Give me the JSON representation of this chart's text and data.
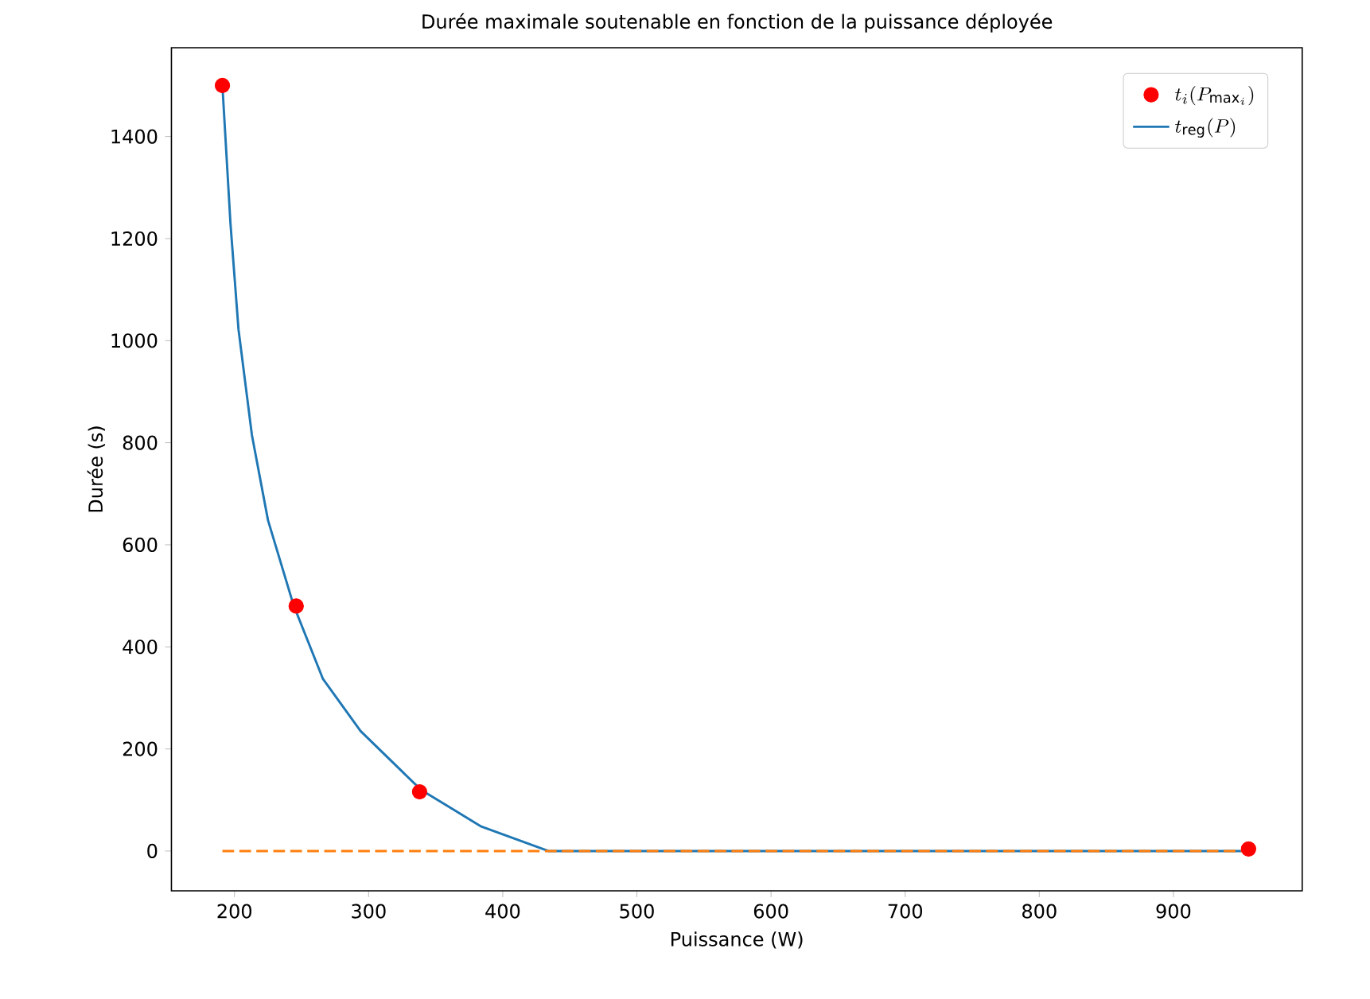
{
  "chart_data": {
    "type": "scatter",
    "title": "Durée maximale soutenable en fonction de la puissance déployée",
    "xlabel": "Puissance (W)",
    "ylabel": "Durée (s)",
    "xlim": [
      153,
      996
    ],
    "ylim": [
      -78,
      1574
    ],
    "xticks": [
      200,
      300,
      400,
      500,
      600,
      700,
      800,
      900
    ],
    "yticks": [
      0,
      200,
      400,
      600,
      800,
      1000,
      1200,
      1400
    ],
    "legend": "top right",
    "grid": false,
    "series": [
      {
        "name": "t_i(P_{\\mathrm{max}_i})",
        "color": "#ff0000",
        "marker": "circle",
        "x": [
          191,
          246,
          338,
          956
        ],
        "values": [
          1500,
          480,
          116,
          4
        ]
      },
      {
        "type": "line",
        "name": "t_{\\mathrm{reg}}(P)",
        "color": "#1f77b4",
        "line_style": "solid",
        "marker": "none",
        "x": [
          191,
          197,
          203,
          213,
          225,
          244,
          266,
          294,
          339,
          384,
          434,
          956
        ],
        "values": [
          1500,
          1230,
          1022,
          815,
          648,
          482,
          337,
          235,
          120,
          48,
          0,
          0
        ]
      },
      {
        "type": "line",
        "color": "#ff7f0e",
        "line_style": "dashed",
        "marker": "none",
        "x": [
          191,
          956
        ],
        "values": [
          0,
          0
        ]
      }
    ]
  }
}
